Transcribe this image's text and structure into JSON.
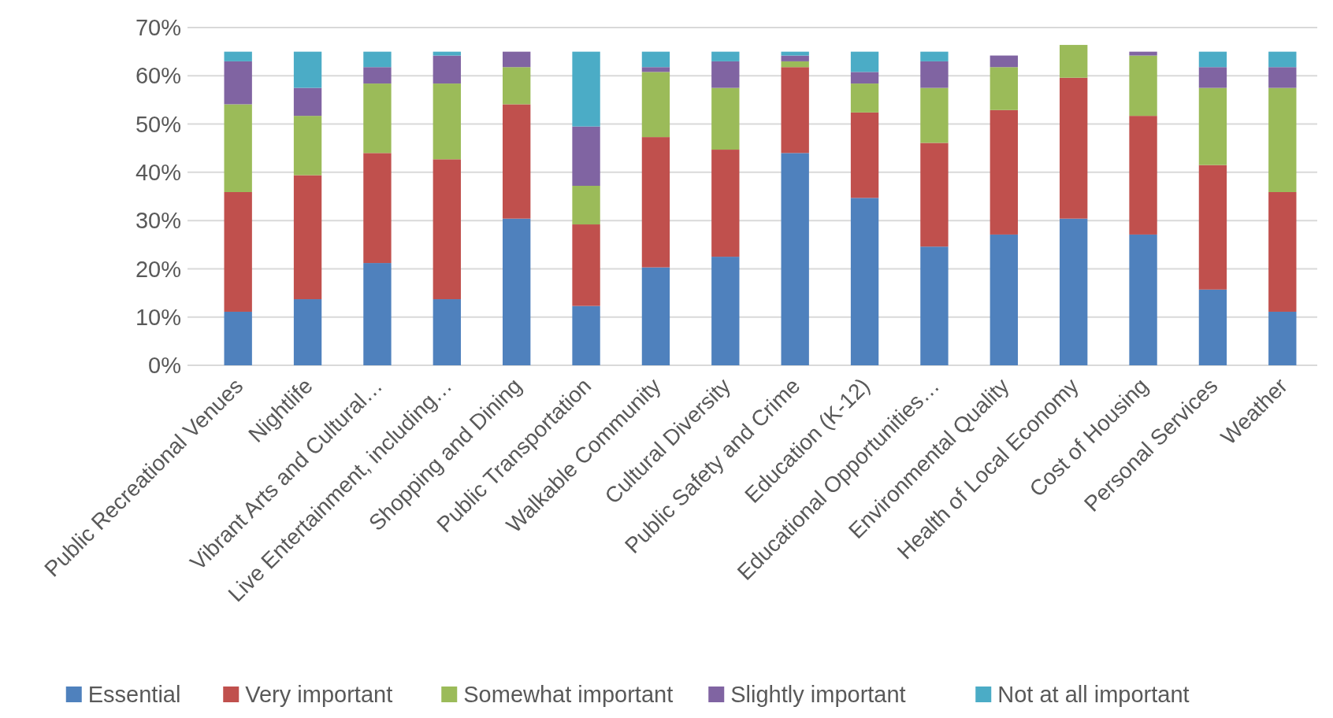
{
  "chart_data": {
    "type": "bar",
    "stacked": true,
    "categories": [
      "Public Recreational Venues",
      "Nightlife",
      "Vibrant Arts and Cultural…",
      "Live Entertainment, including…",
      "Shopping and Dining",
      "Public Transportation",
      "Walkable Community",
      "Cultural Diversity",
      "Public Safety and Crime",
      "Education (K-12)",
      "Educational Opportunities…",
      "Environmental Quality",
      "Health of Local Economy",
      "Cost of Housing",
      "Personal Services",
      "Weather"
    ],
    "series": [
      {
        "name": "Essential",
        "color": "#4f81bd",
        "values": [
          11.1,
          13.7,
          21.2,
          13.7,
          30.4,
          12.3,
          20.3,
          22.5,
          44.0,
          34.7,
          24.6,
          27.1,
          30.4,
          27.1,
          15.7,
          11.1
        ]
      },
      {
        "name": "Very important",
        "color": "#c0504d",
        "values": [
          24.8,
          25.7,
          22.8,
          29.0,
          23.7,
          16.9,
          27.0,
          22.2,
          17.8,
          17.7,
          21.5,
          25.8,
          29.2,
          24.6,
          25.8,
          24.8
        ]
      },
      {
        "name": "Somewhat important",
        "color": "#9bbb59",
        "values": [
          18.2,
          12.3,
          14.4,
          15.7,
          7.7,
          8.0,
          13.5,
          12.8,
          1.2,
          6.0,
          11.4,
          8.9,
          6.8,
          12.5,
          16.0,
          21.6
        ]
      },
      {
        "name": "Slightly important",
        "color": "#8064a2",
        "values": [
          8.9,
          5.8,
          3.4,
          5.8,
          3.2,
          12.3,
          1.0,
          5.5,
          1.2,
          2.4,
          5.5,
          2.4,
          0,
          0.8,
          4.3,
          4.3
        ]
      },
      {
        "name": "Not at all important",
        "color": "#4bacc6",
        "values": [
          2.0,
          7.5,
          3.2,
          0.8,
          0,
          15.5,
          3.2,
          2.0,
          0.8,
          4.2,
          2.0,
          0,
          0,
          0,
          3.2,
          3.2
        ]
      }
    ],
    "ylim": [
      0,
      70
    ],
    "yticks": [
      {
        "value": 0,
        "label": "0%"
      },
      {
        "value": 10,
        "label": "10%"
      },
      {
        "value": 20,
        "label": "20%"
      },
      {
        "value": 30,
        "label": "30%"
      },
      {
        "value": 40,
        "label": "40%"
      },
      {
        "value": 50,
        "label": "50%"
      },
      {
        "value": 60,
        "label": "60%"
      },
      {
        "value": 70,
        "label": "70%"
      }
    ],
    "grid": "y",
    "legend": "bottom"
  }
}
